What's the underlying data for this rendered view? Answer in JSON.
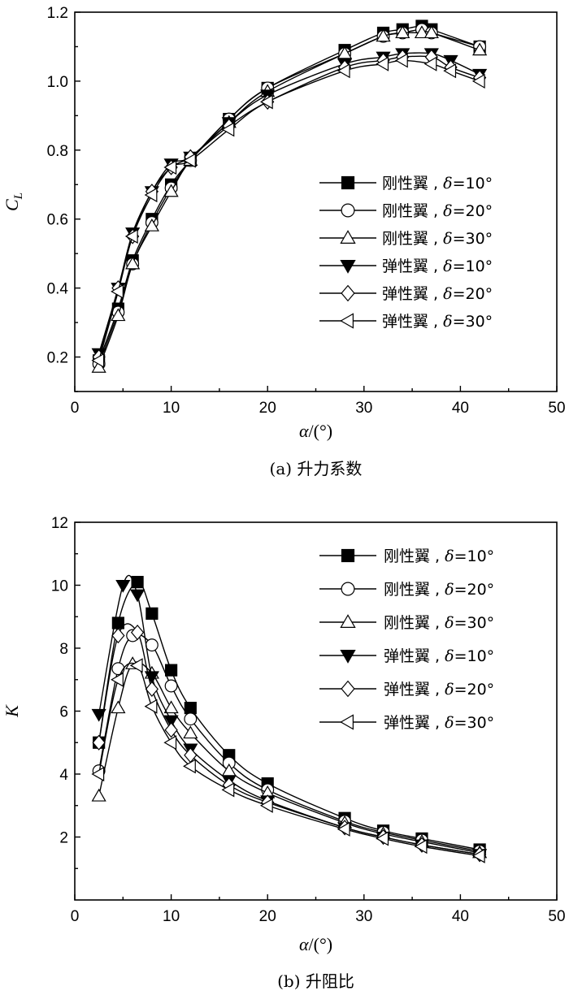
{
  "chart_data": [
    {
      "id": "a",
      "type": "line",
      "caption": "(a) 升力系数",
      "xlabel": "α/(°)",
      "ylabel": "C_L",
      "xlim": [
        0,
        50
      ],
      "ylim": [
        0.1,
        1.2
      ],
      "xticks": [
        0,
        10,
        20,
        30,
        40,
        50
      ],
      "yticks": [
        0.2,
        0.4,
        0.6,
        0.8,
        1.0,
        1.2
      ],
      "ytick_labels": [
        "0.2",
        "0.4",
        "0.6",
        "0.8",
        "1.0",
        "1.2"
      ],
      "grid": false,
      "legend_position": "right",
      "series": [
        {
          "name": "刚性翼 , δ=10°",
          "marker": "square",
          "fill": "#000000",
          "x": [
            2.5,
            4.5,
            6,
            8,
            10,
            12,
            16,
            20,
            28,
            32,
            34,
            36,
            37,
            42
          ],
          "y": [
            0.19,
            0.34,
            0.48,
            0.6,
            0.7,
            0.77,
            0.89,
            0.98,
            1.09,
            1.14,
            1.15,
            1.16,
            1.15,
            1.1
          ]
        },
        {
          "name": "刚性翼 , δ=20°",
          "marker": "circle",
          "fill": "#ffffff",
          "x": [
            2.5,
            4.5,
            6,
            8,
            10,
            12,
            16,
            20,
            28,
            32,
            34,
            36,
            37,
            42
          ],
          "y": [
            0.18,
            0.33,
            0.47,
            0.59,
            0.69,
            0.77,
            0.89,
            0.98,
            1.08,
            1.13,
            1.14,
            1.15,
            1.14,
            1.1
          ]
        },
        {
          "name": "刚性翼 , δ=30°",
          "marker": "triangle-up",
          "fill": "#ffffff",
          "x": [
            2.5,
            4.5,
            6,
            8,
            10,
            12,
            16,
            20,
            28,
            32,
            34,
            36,
            37,
            42
          ],
          "y": [
            0.17,
            0.32,
            0.47,
            0.58,
            0.68,
            0.77,
            0.88,
            0.97,
            1.08,
            1.13,
            1.14,
            1.14,
            1.14,
            1.09
          ]
        },
        {
          "name": "弹性翼 , δ=10°",
          "marker": "triangle-down",
          "fill": "#000000",
          "x": [
            2.5,
            4.5,
            6,
            8,
            10,
            12,
            16,
            20,
            28,
            32,
            34,
            37,
            39,
            42
          ],
          "y": [
            0.21,
            0.4,
            0.56,
            0.68,
            0.76,
            0.78,
            0.88,
            0.96,
            1.05,
            1.07,
            1.08,
            1.08,
            1.06,
            1.02
          ]
        },
        {
          "name": "弹性翼 , δ=20°",
          "marker": "diamond",
          "fill": "#ffffff",
          "x": [
            2.5,
            4.5,
            6,
            8,
            10,
            12,
            16,
            20,
            28,
            32,
            34,
            37,
            39,
            42
          ],
          "y": [
            0.2,
            0.4,
            0.55,
            0.68,
            0.75,
            0.78,
            0.87,
            0.94,
            1.04,
            1.06,
            1.07,
            1.07,
            1.04,
            1.01
          ]
        },
        {
          "name": "弹性翼 , δ=30°",
          "marker": "triangle-left",
          "fill": "#ffffff",
          "x": [
            2.5,
            4.5,
            6,
            8,
            10,
            12,
            16,
            20,
            28,
            32,
            34,
            37,
            39,
            42
          ],
          "y": [
            0.19,
            0.39,
            0.55,
            0.67,
            0.75,
            0.77,
            0.86,
            0.94,
            1.03,
            1.05,
            1.06,
            1.05,
            1.03,
            1.0
          ]
        }
      ]
    },
    {
      "id": "b",
      "type": "line",
      "caption": "(b) 升阻比",
      "xlabel": "α/(°)",
      "ylabel": "K",
      "xlim": [
        0,
        50
      ],
      "ylim": [
        0,
        12
      ],
      "xticks": [
        0,
        10,
        20,
        30,
        40,
        50
      ],
      "yticks": [
        2,
        4,
        6,
        8,
        10,
        12
      ],
      "ytick_labels": [
        "2",
        "4",
        "6",
        "8",
        "10",
        "12"
      ],
      "grid": false,
      "legend_position": "top-right",
      "series": [
        {
          "name": "刚性翼 , δ=10°",
          "marker": "square",
          "fill": "#000000",
          "x": [
            2.5,
            4.5,
            6.5,
            8,
            10,
            12,
            16,
            20,
            28,
            32,
            36,
            42
          ],
          "y": [
            5.0,
            8.8,
            10.1,
            9.1,
            7.3,
            6.1,
            4.6,
            3.7,
            2.6,
            2.2,
            1.95,
            1.6
          ]
        },
        {
          "name": "刚性翼 , δ=20°",
          "marker": "circle",
          "fill": "#ffffff",
          "x": [
            2.5,
            4.5,
            6,
            8,
            10,
            12,
            16,
            20,
            28,
            32,
            36,
            42
          ],
          "y": [
            4.1,
            7.35,
            8.4,
            8.1,
            6.8,
            5.75,
            4.35,
            3.5,
            2.5,
            2.15,
            1.9,
            1.55
          ]
        },
        {
          "name": "刚性翼 , δ=30°",
          "marker": "triangle-up",
          "fill": "#ffffff",
          "x": [
            2.5,
            4.5,
            6,
            8,
            10,
            12,
            16,
            20,
            28,
            32,
            36,
            42
          ],
          "y": [
            3.3,
            6.1,
            7.5,
            7.2,
            6.1,
            5.3,
            4.1,
            3.4,
            2.45,
            2.1,
            1.85,
            1.5
          ]
        },
        {
          "name": "弹性翼 , δ=10°",
          "marker": "triangle-down",
          "fill": "#000000",
          "x": [
            2.5,
            5,
            6.5,
            8,
            10,
            12,
            16,
            20,
            28,
            32,
            36,
            42
          ],
          "y": [
            5.9,
            10.0,
            9.7,
            7.1,
            5.7,
            4.8,
            3.8,
            3.15,
            2.3,
            2.0,
            1.75,
            1.45
          ]
        },
        {
          "name": "弹性翼 , δ=20°",
          "marker": "diamond",
          "fill": "#ffffff",
          "x": [
            2.5,
            4.5,
            6.5,
            8,
            10,
            12,
            16,
            20,
            28,
            32,
            36,
            42
          ],
          "y": [
            5.0,
            8.4,
            8.5,
            6.7,
            5.4,
            4.6,
            3.65,
            3.1,
            2.3,
            2.0,
            1.75,
            1.45
          ]
        },
        {
          "name": "弹性翼 , δ=30°",
          "marker": "triangle-left",
          "fill": "#ffffff",
          "x": [
            2.5,
            4.5,
            6.5,
            8,
            10,
            12,
            16,
            20,
            28,
            32,
            36,
            42
          ],
          "y": [
            4.0,
            7.0,
            7.45,
            6.15,
            5.0,
            4.25,
            3.5,
            3.0,
            2.25,
            1.95,
            1.7,
            1.4
          ]
        }
      ]
    }
  ]
}
